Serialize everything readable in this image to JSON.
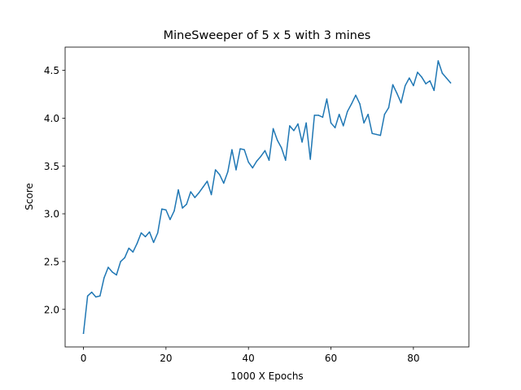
{
  "chart_data": {
    "type": "line",
    "title": "MineSweeper of 5 x 5 with 3 mines",
    "xlabel": "1000 X Epochs",
    "ylabel": "Score",
    "xlim": [
      -4.45,
      93.45
    ],
    "ylim": [
      1.607,
      4.743
    ],
    "xticks": [
      0,
      20,
      40,
      60,
      80
    ],
    "xtick_labels": [
      "0",
      "20",
      "40",
      "60",
      "80"
    ],
    "yticks": [
      2.0,
      2.5,
      3.0,
      3.5,
      4.0,
      4.5
    ],
    "ytick_labels": [
      "2.0",
      "2.5",
      "3.0",
      "3.5",
      "4.0",
      "4.5"
    ],
    "grid": false,
    "line_color": "#1f77b4",
    "series": [
      {
        "name": "Score",
        "x": [
          0,
          1,
          2,
          3,
          4,
          5,
          6,
          7,
          8,
          9,
          10,
          11,
          12,
          13,
          14,
          15,
          16,
          17,
          18,
          19,
          20,
          21,
          22,
          23,
          24,
          25,
          26,
          27,
          28,
          29,
          30,
          31,
          32,
          33,
          34,
          35,
          36,
          37,
          38,
          39,
          40,
          41,
          42,
          43,
          44,
          45,
          46,
          47,
          48,
          49,
          50,
          51,
          52,
          53,
          54,
          55,
          56,
          57,
          58,
          59,
          60,
          61,
          62,
          63,
          64,
          65,
          66,
          67,
          68,
          69,
          70,
          71,
          72,
          73,
          74,
          75,
          76,
          77,
          78,
          79,
          80,
          81,
          82,
          83,
          84,
          85,
          86,
          87,
          88,
          89
        ],
        "values": [
          1.75,
          2.14,
          2.18,
          2.13,
          2.14,
          2.33,
          2.44,
          2.39,
          2.36,
          2.5,
          2.54,
          2.64,
          2.6,
          2.69,
          2.8,
          2.76,
          2.81,
          2.7,
          2.8,
          3.05,
          3.04,
          2.94,
          3.03,
          3.25,
          3.06,
          3.1,
          3.23,
          3.17,
          3.22,
          3.28,
          3.34,
          3.2,
          3.46,
          3.41,
          3.32,
          3.44,
          3.67,
          3.46,
          3.68,
          3.67,
          3.54,
          3.48,
          3.55,
          3.6,
          3.66,
          3.56,
          3.89,
          3.77,
          3.69,
          3.56,
          3.92,
          3.87,
          3.94,
          3.75,
          3.95,
          3.57,
          4.03,
          4.03,
          4.01,
          4.2,
          3.95,
          3.9,
          4.04,
          3.92,
          4.07,
          4.15,
          4.24,
          4.15,
          3.95,
          4.04,
          3.84,
          3.83,
          3.82,
          4.04,
          4.11,
          4.35,
          4.26,
          4.16,
          4.34,
          4.42,
          4.34,
          4.48,
          4.43,
          4.36,
          4.39,
          4.29,
          4.6,
          4.47,
          4.42,
          4.37
        ]
      }
    ]
  }
}
